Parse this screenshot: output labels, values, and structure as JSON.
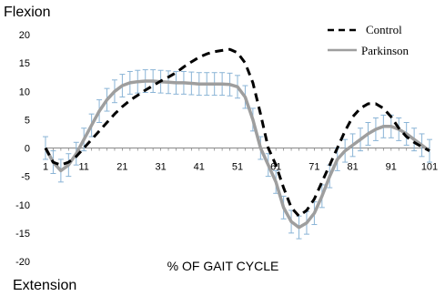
{
  "chart_data": {
    "type": "line",
    "title": "",
    "ylabel_top": "Flexion",
    "ylabel_bottom": "Extension",
    "xlabel": "% OF GAIT CYCLE",
    "ylim": [
      -20,
      20
    ],
    "yticks": [
      20,
      15,
      10,
      5,
      0,
      -5,
      -10,
      -15,
      -20
    ],
    "xlim": [
      1,
      101
    ],
    "xticks": [
      1,
      11,
      21,
      31,
      41,
      51,
      61,
      71,
      81,
      91,
      101
    ],
    "grid": false,
    "legend_position": "top-right",
    "x": [
      1,
      3,
      5,
      7,
      9,
      11,
      13,
      15,
      17,
      19,
      21,
      23,
      25,
      27,
      29,
      31,
      33,
      35,
      37,
      39,
      41,
      43,
      45,
      47,
      49,
      51,
      53,
      55,
      57,
      59,
      61,
      63,
      65,
      67,
      69,
      71,
      73,
      75,
      77,
      79,
      81,
      83,
      85,
      87,
      89,
      91,
      93,
      95,
      97,
      99,
      101
    ],
    "series": [
      {
        "name": "Control",
        "color": "#000000",
        "style": "dashed",
        "values": [
          0,
          -2.5,
          -3,
          -2.5,
          -1.5,
          0,
          1.5,
          3,
          4.5,
          6,
          7.3,
          8.4,
          9.3,
          10.2,
          11,
          11.8,
          12.5,
          13.3,
          14.3,
          15.2,
          16,
          16.6,
          17,
          17.2,
          17.4,
          16.8,
          15,
          11.5,
          6,
          0,
          -3,
          -7,
          -10.5,
          -12,
          -11,
          -9,
          -6,
          -3,
          0,
          3,
          5.5,
          7,
          7.8,
          7.8,
          7,
          5.5,
          3.5,
          2,
          1,
          0.2,
          -0.5
        ]
      },
      {
        "name": "Parkinson",
        "color": "#9e9e9e",
        "style": "solid",
        "error_bar_color": "#8ab4d6",
        "error": 2,
        "values": [
          0,
          -2.5,
          -4,
          -3,
          -1,
          1.5,
          4,
          6.5,
          8.5,
          10,
          11,
          11.5,
          11.7,
          11.8,
          11.8,
          11.7,
          11.6,
          11.5,
          11.5,
          11.4,
          11.3,
          11.3,
          11.3,
          11.3,
          11.2,
          10.8,
          9,
          5,
          0,
          -3,
          -6,
          -10.5,
          -13,
          -14,
          -13.2,
          -11.5,
          -8.5,
          -5,
          -2,
          -0.5,
          0.5,
          1.5,
          2.5,
          3.3,
          3.8,
          3.8,
          3.3,
          2.5,
          1.5,
          0.5,
          -0.5
        ]
      }
    ]
  }
}
